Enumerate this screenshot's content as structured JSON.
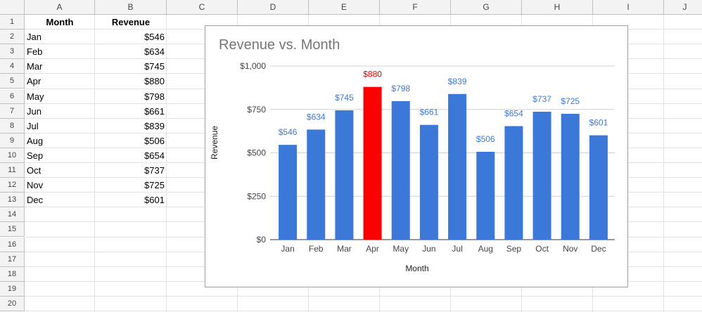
{
  "columns": [
    "A",
    "B",
    "C",
    "D",
    "E",
    "F",
    "G",
    "H",
    "I",
    "J"
  ],
  "rows": [
    "1",
    "2",
    "3",
    "4",
    "5",
    "6",
    "7",
    "8",
    "9",
    "10",
    "11",
    "12",
    "13",
    "14",
    "15",
    "16",
    "17",
    "18",
    "19",
    "20"
  ],
  "table": {
    "headers": [
      "Month",
      "Revenue"
    ],
    "rows": [
      [
        "Jan",
        "$546"
      ],
      [
        "Feb",
        "$634"
      ],
      [
        "Mar",
        "$745"
      ],
      [
        "Apr",
        "$880"
      ],
      [
        "May",
        "$798"
      ],
      [
        "Jun",
        "$661"
      ],
      [
        "Jul",
        "$839"
      ],
      [
        "Aug",
        "$506"
      ],
      [
        "Sep",
        "$654"
      ],
      [
        "Oct",
        "$737"
      ],
      [
        "Nov",
        "$725"
      ],
      [
        "Dec",
        "$601"
      ]
    ]
  },
  "chart": {
    "title": "Revenue vs. Month",
    "xlabel": "Month",
    "ylabel": "Revenue"
  },
  "chart_data": {
    "type": "bar",
    "title": "Revenue vs. Month",
    "xlabel": "Month",
    "ylabel": "Revenue",
    "categories": [
      "Jan",
      "Feb",
      "Mar",
      "Apr",
      "May",
      "Jun",
      "Jul",
      "Aug",
      "Sep",
      "Oct",
      "Nov",
      "Dec"
    ],
    "values": [
      546,
      634,
      745,
      880,
      798,
      661,
      839,
      506,
      654,
      737,
      725,
      601
    ],
    "data_labels": [
      "$546",
      "$634",
      "$745",
      "$880",
      "$798",
      "$661",
      "$839",
      "$506",
      "$654",
      "$737",
      "$725",
      "$601"
    ],
    "highlight_index": 3,
    "ylim": [
      0,
      1000
    ],
    "yticks": [
      0,
      250,
      500,
      750,
      1000
    ],
    "ytick_labels": [
      "$0",
      "$250",
      "$500",
      "$750",
      "$1,000"
    ],
    "grid": true,
    "legend": "none",
    "colors": {
      "bar": "#3c78d8",
      "highlight": "#ff0000",
      "label": "#3c78d8",
      "highlight_label": "#e00000",
      "grid": "#d0d0d0"
    }
  }
}
